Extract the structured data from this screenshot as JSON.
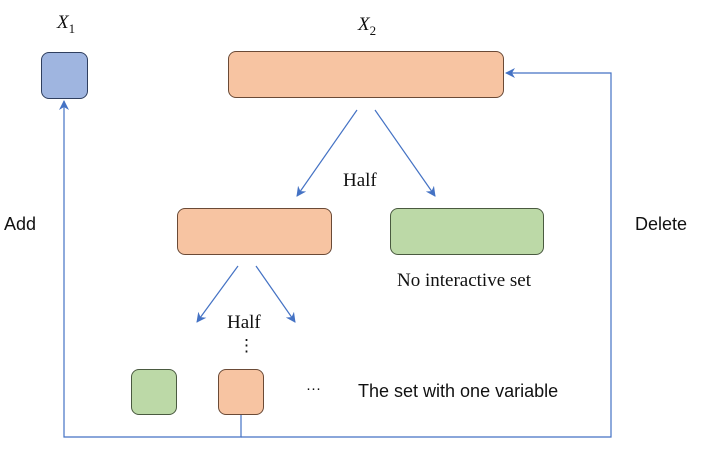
{
  "variables": {
    "x1": {
      "symbol": "X",
      "subscript": "1"
    },
    "x2": {
      "symbol": "X",
      "subscript": "2"
    }
  },
  "labels": {
    "half_upper": "Half",
    "half_lower": "Half",
    "no_interactive_set": "No interactive set",
    "set_one_variable": "The set with one variable",
    "add": "Add",
    "delete": "Delete",
    "vertical_ellipsis": "⋮",
    "horizontal_ellipsis": "···"
  },
  "colors": {
    "blue_fill": "#9fb5e0",
    "orange_fill": "#f7c4a2",
    "green_fill": "#bcd9a7",
    "arrow": "#4472c4"
  }
}
